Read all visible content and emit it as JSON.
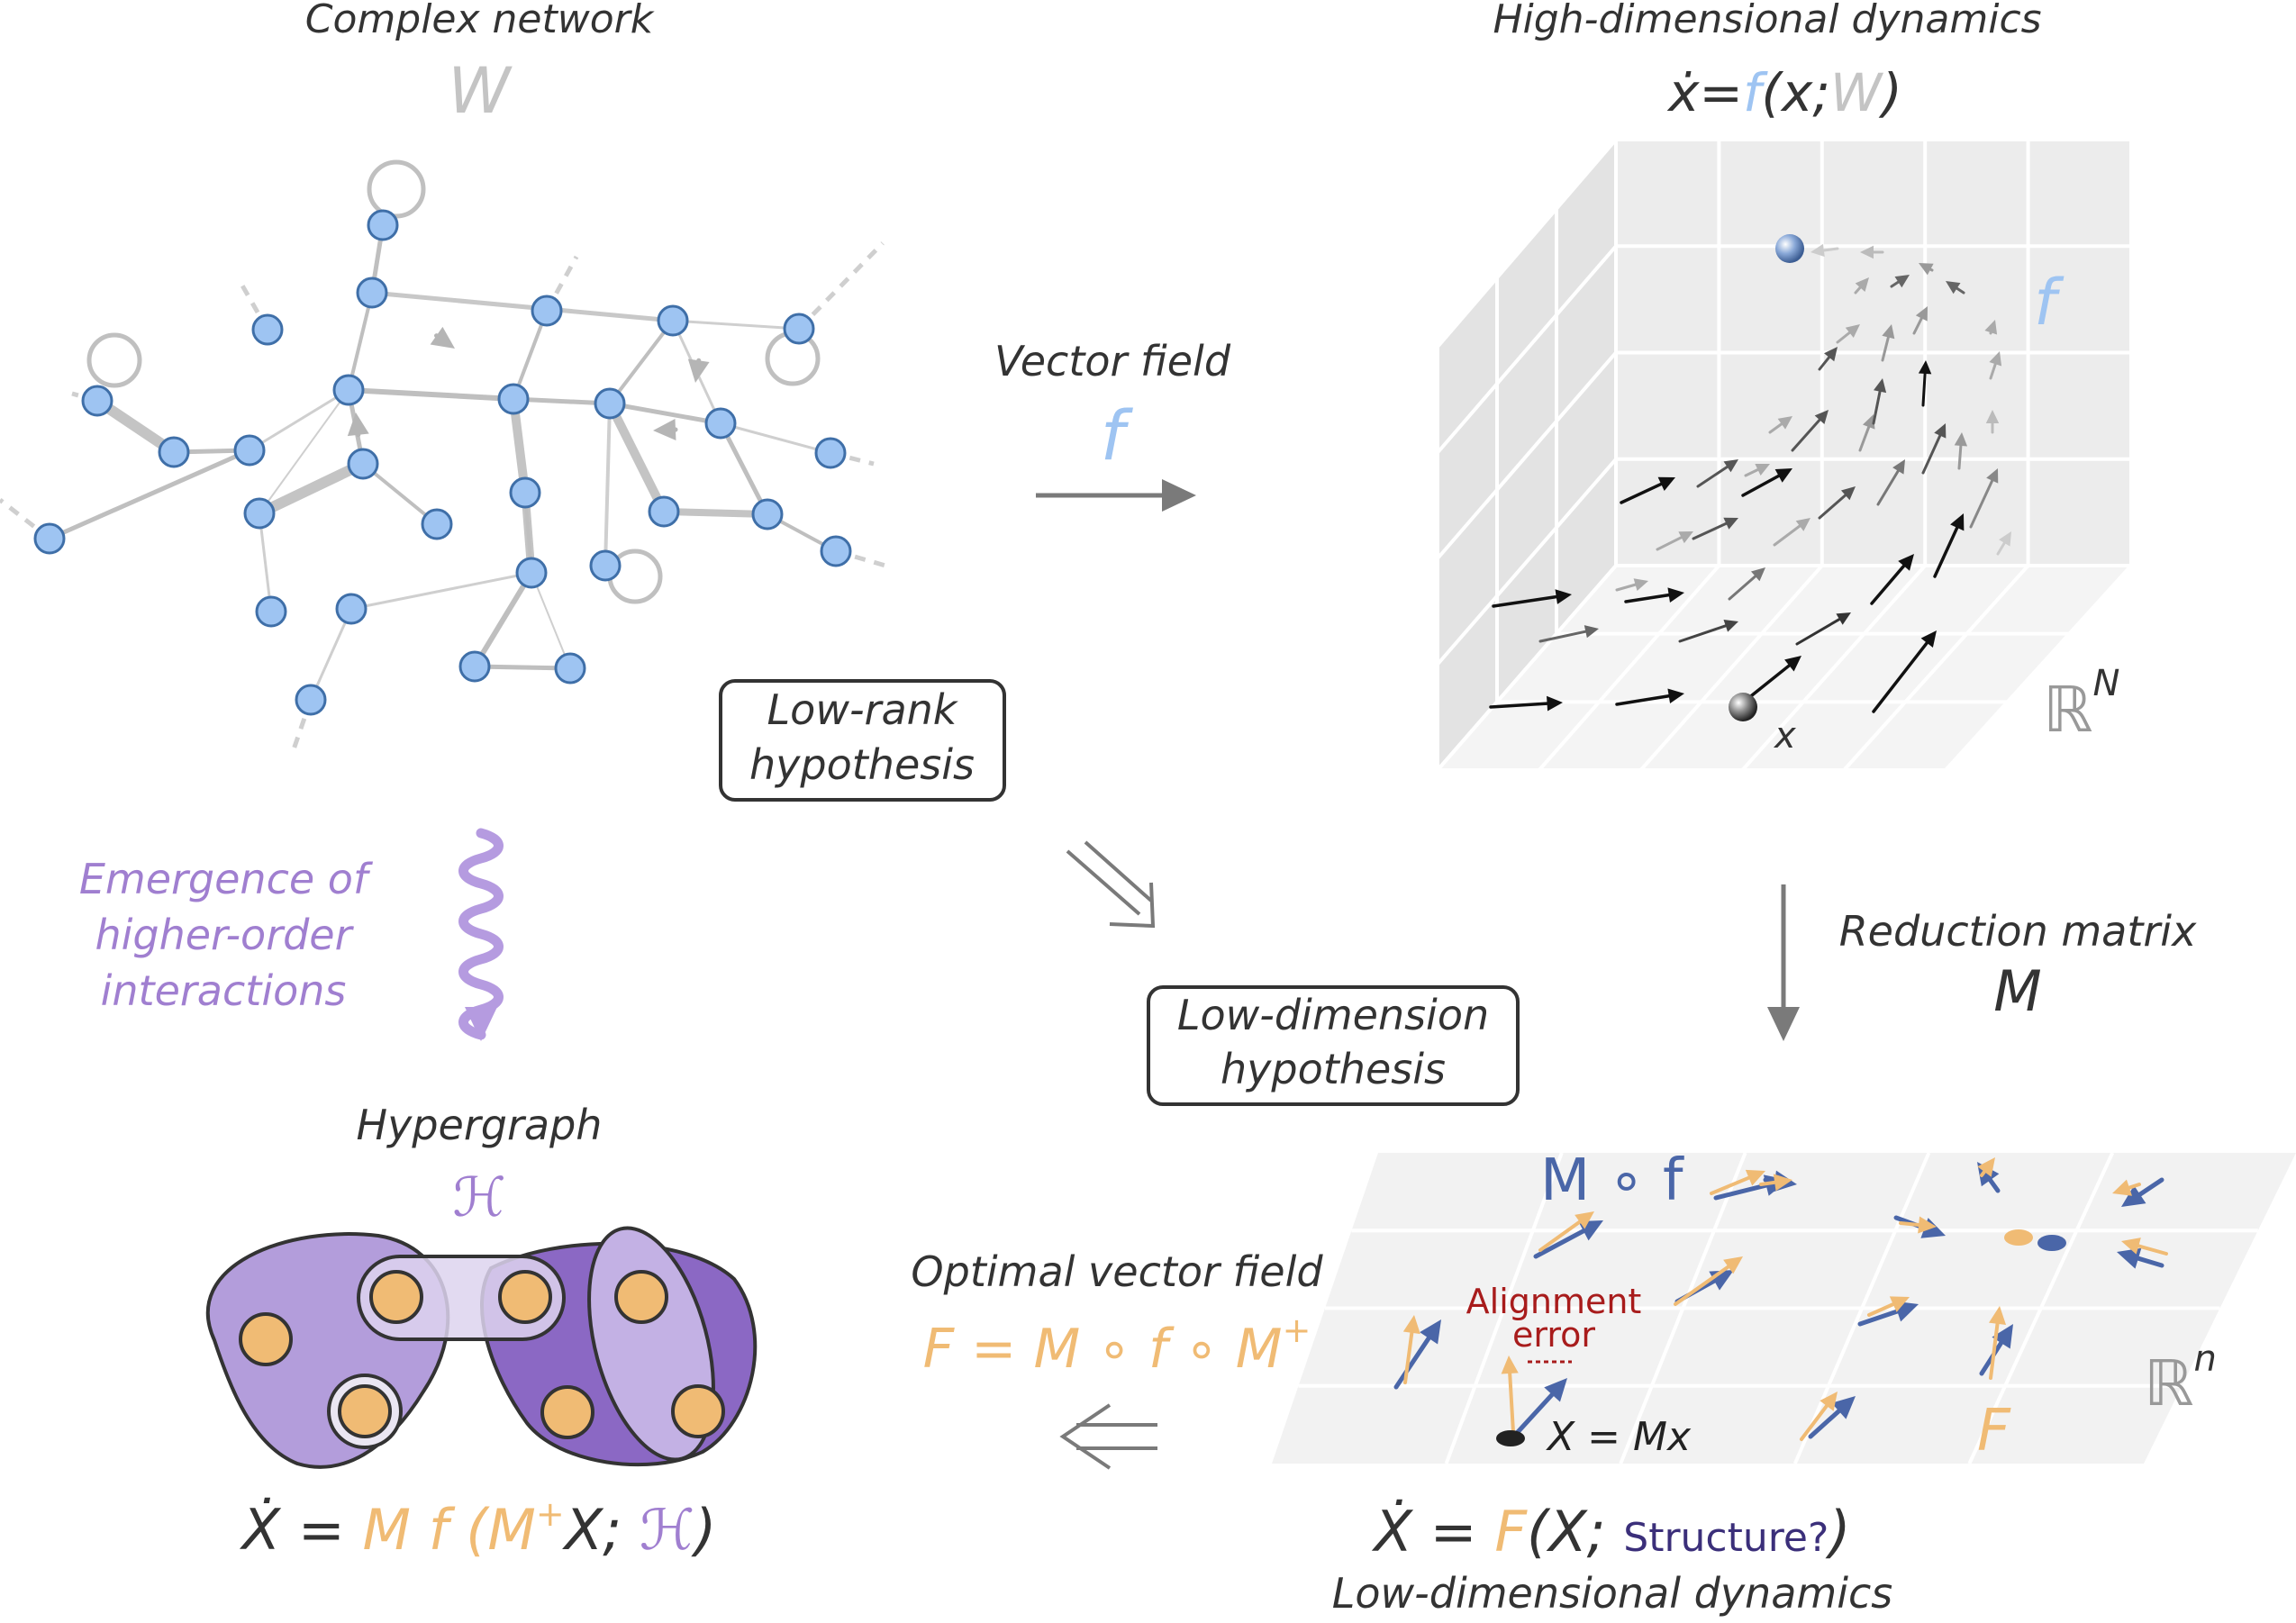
{
  "colors": {
    "dark": "#333333",
    "gray": "#bfbfbf",
    "node": "#9ec4f2",
    "node_stroke": "#3f6fa8",
    "blue_light": "#9ec4f2",
    "blue_dark": "#4a66a8",
    "orange": "#f0bb74",
    "purple": "#a98ed6",
    "purple_dark": "#7a55c0",
    "red": "#a81c1c",
    "navy": "#3b2f7a"
  },
  "network": {
    "title": "Complex network",
    "symbol": "W"
  },
  "highdim": {
    "title": "High-dimensional dynamics",
    "eq_prefix": "ẋ=",
    "eq_f": "f",
    "eq_mid": "(x;",
    "eq_w": "W",
    "eq_end": ")",
    "field_label": "f",
    "state_label": "x",
    "space_label": "ℝ",
    "space_exp": "N"
  },
  "vector_field": {
    "label": "Vector field",
    "symbol": "f"
  },
  "hypotheses": {
    "low_rank_line1": "Low-rank",
    "low_rank_line2": "hypothesis",
    "low_dim_line1": "Low-dimension",
    "low_dim_line2": "hypothesis"
  },
  "emergence": {
    "line1": "Emergence of",
    "line2": "higher-order",
    "line3": "interactions"
  },
  "reduction": {
    "label": "Reduction matrix",
    "symbol": "M"
  },
  "hypergraph": {
    "title": "Hypergraph",
    "symbol": "ℋ",
    "eq_x": "Ẋ = ",
    "eq_m": "M f (M",
    "eq_plus": "+",
    "eq_x2": "X; ",
    "eq_h": "ℋ",
    "eq_end": ")"
  },
  "optimal": {
    "title": "Optimal vector field",
    "eq": "F = M ∘ f ∘ M",
    "eq_plus": "+"
  },
  "lowdim": {
    "mof": "M ∘ f",
    "align_line1": "Alignment",
    "align_line2": "error",
    "state_label": "X = Mx",
    "field_label": "F",
    "space_label": "ℝ",
    "space_exp": "n",
    "eq_x": "Ẋ = ",
    "eq_f": "F",
    "eq_mid": "(X; ",
    "eq_struct": "Structure?",
    "eq_end": ")",
    "caption": "Low-dimensional dynamics"
  }
}
